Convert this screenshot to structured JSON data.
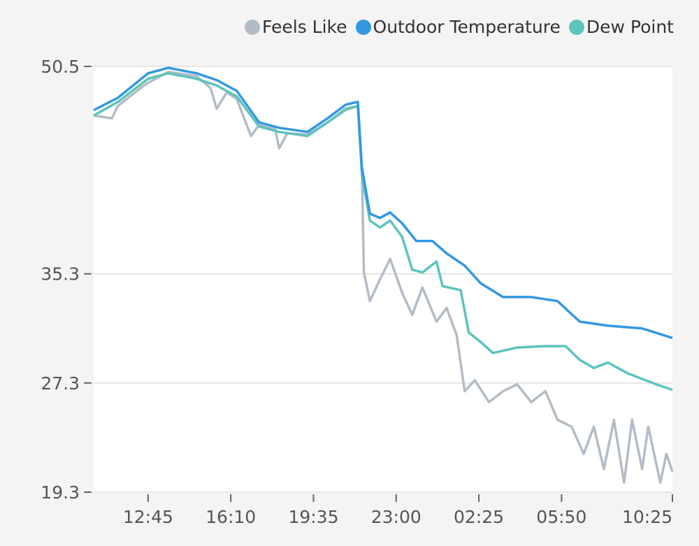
{
  "chart_data": {
    "type": "line",
    "title": "",
    "xlabel": "",
    "ylabel": "",
    "x_ticks": [
      "12:45",
      "16:10",
      "19:35",
      "23:00",
      "02:25",
      "05:50",
      "10:25"
    ],
    "y_ticks": [
      50.5,
      35.3,
      27.3,
      19.3
    ],
    "y_tick_labels": [
      "50.5",
      "35.3",
      "27.3",
      "19.3"
    ],
    "ylim": [
      19.3,
      50.5
    ],
    "xlim": [
      "10:30",
      "10:25"
    ],
    "grid": "horizontal",
    "legend_position": "top-right",
    "series": [
      {
        "name": "Feels Like",
        "color": "#b3bcc5",
        "points": [
          [
            "10:30",
            46.9
          ],
          [
            "11:15",
            46.7
          ],
          [
            "11:30",
            47.6
          ],
          [
            "12:30",
            49.0
          ],
          [
            "12:45",
            49.3
          ],
          [
            "13:35",
            50.1
          ],
          [
            "14:45",
            49.8
          ],
          [
            "15:20",
            48.9
          ],
          [
            "15:35",
            47.4
          ],
          [
            "16:00",
            48.6
          ],
          [
            "16:25",
            48.1
          ],
          [
            "17:00",
            45.4
          ],
          [
            "17:20",
            46.2
          ],
          [
            "18:00",
            45.9
          ],
          [
            "18:10",
            44.5
          ],
          [
            "18:30",
            45.6
          ],
          [
            "19:20",
            45.5
          ],
          [
            "20:10",
            46.4
          ],
          [
            "20:55",
            47.3
          ],
          [
            "21:25",
            47.6
          ],
          [
            "21:35",
            43.0
          ],
          [
            "21:40",
            35.4
          ],
          [
            "21:55",
            33.3
          ],
          [
            "22:20",
            34.9
          ],
          [
            "22:45",
            36.4
          ],
          [
            "23:15",
            33.9
          ],
          [
            "23:40",
            32.3
          ],
          [
            "00:05",
            34.3
          ],
          [
            "00:40",
            31.8
          ],
          [
            "01:05",
            32.8
          ],
          [
            "01:30",
            30.8
          ],
          [
            "01:50",
            26.7
          ],
          [
            "02:15",
            27.5
          ],
          [
            "02:50",
            25.9
          ],
          [
            "03:25",
            26.7
          ],
          [
            "04:00",
            27.2
          ],
          [
            "04:35",
            25.9
          ],
          [
            "05:10",
            26.7
          ],
          [
            "05:40",
            24.6
          ],
          [
            "06:15",
            24.1
          ],
          [
            "06:45",
            22.1
          ],
          [
            "07:10",
            24.1
          ],
          [
            "07:35",
            21.0
          ],
          [
            "08:00",
            24.6
          ],
          [
            "08:25",
            20.0
          ],
          [
            "08:45",
            24.6
          ],
          [
            "09:10",
            21.0
          ],
          [
            "09:25",
            24.1
          ],
          [
            "09:55",
            20.0
          ],
          [
            "10:10",
            22.1
          ],
          [
            "10:25",
            20.8
          ]
        ]
      },
      {
        "name": "Outdoor Temperature",
        "color": "#3498e0",
        "points": [
          [
            "10:30",
            47.3
          ],
          [
            "11:30",
            48.2
          ],
          [
            "12:45",
            50.0
          ],
          [
            "13:35",
            50.4
          ],
          [
            "14:45",
            50.0
          ],
          [
            "15:35",
            49.5
          ],
          [
            "16:25",
            48.7
          ],
          [
            "17:20",
            46.4
          ],
          [
            "18:10",
            46.0
          ],
          [
            "19:20",
            45.7
          ],
          [
            "20:10",
            46.7
          ],
          [
            "20:55",
            47.7
          ],
          [
            "21:25",
            47.9
          ],
          [
            "21:35",
            43.1
          ],
          [
            "21:55",
            39.7
          ],
          [
            "22:20",
            39.4
          ],
          [
            "22:45",
            39.8
          ],
          [
            "23:15",
            39.0
          ],
          [
            "23:50",
            37.7
          ],
          [
            "00:30",
            37.7
          ],
          [
            "01:05",
            36.8
          ],
          [
            "01:50",
            35.9
          ],
          [
            "02:30",
            34.6
          ],
          [
            "03:25",
            33.6
          ],
          [
            "04:35",
            33.6
          ],
          [
            "05:40",
            33.3
          ],
          [
            "06:35",
            31.8
          ],
          [
            "07:45",
            31.5
          ],
          [
            "09:10",
            31.3
          ],
          [
            "10:25",
            30.6
          ]
        ]
      },
      {
        "name": "Dew Point",
        "color": "#5cc4bc",
        "points": [
          [
            "10:30",
            46.9
          ],
          [
            "11:30",
            47.9
          ],
          [
            "12:45",
            49.6
          ],
          [
            "13:35",
            50.0
          ],
          [
            "14:45",
            49.6
          ],
          [
            "15:35",
            49.1
          ],
          [
            "16:25",
            48.3
          ],
          [
            "17:20",
            46.1
          ],
          [
            "18:10",
            45.7
          ],
          [
            "19:20",
            45.4
          ],
          [
            "20:10",
            46.4
          ],
          [
            "20:55",
            47.4
          ],
          [
            "21:25",
            47.6
          ],
          [
            "21:35",
            42.6
          ],
          [
            "21:55",
            39.2
          ],
          [
            "22:20",
            38.7
          ],
          [
            "22:45",
            39.2
          ],
          [
            "23:15",
            38.0
          ],
          [
            "23:40",
            35.6
          ],
          [
            "00:05",
            35.4
          ],
          [
            "00:40",
            36.2
          ],
          [
            "00:55",
            34.4
          ],
          [
            "01:40",
            34.1
          ],
          [
            "02:00",
            31.0
          ],
          [
            "02:30",
            30.3
          ],
          [
            "03:00",
            29.5
          ],
          [
            "04:00",
            29.9
          ],
          [
            "05:10",
            30.0
          ],
          [
            "06:00",
            30.0
          ],
          [
            "06:35",
            29.0
          ],
          [
            "07:10",
            28.4
          ],
          [
            "07:45",
            28.8
          ],
          [
            "08:35",
            28.0
          ],
          [
            "09:45",
            27.2
          ],
          [
            "10:25",
            26.8
          ]
        ]
      }
    ]
  }
}
